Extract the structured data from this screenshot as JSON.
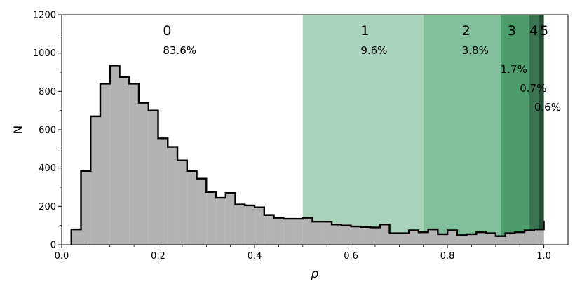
{
  "chart_data": {
    "type": "histogram",
    "xlabel": "p",
    "ylabel": "N",
    "xlim": [
      0.0,
      1.05
    ],
    "ylim": [
      0,
      1200
    ],
    "xticks": [
      "0.0",
      "0.2",
      "0.4",
      "0.6",
      "0.8",
      "1.0"
    ],
    "yticks": [
      "0",
      "200",
      "400",
      "600",
      "800",
      "1000",
      "1200"
    ],
    "grid": false,
    "hist_color": "#b3b3b3",
    "edge_color": "#000000",
    "bin_edges": [
      0.02,
      0.04,
      0.06,
      0.08,
      0.1,
      0.12,
      0.14,
      0.16,
      0.18,
      0.2,
      0.22,
      0.24,
      0.26,
      0.28,
      0.3,
      0.32,
      0.34,
      0.36,
      0.38,
      0.4,
      0.42,
      0.44,
      0.46,
      0.48,
      0.5,
      0.52,
      0.54,
      0.56,
      0.58,
      0.6,
      0.62,
      0.64,
      0.66,
      0.68,
      0.7,
      0.72,
      0.74,
      0.76,
      0.78,
      0.8,
      0.82,
      0.84,
      0.86,
      0.88,
      0.9,
      0.92,
      0.94,
      0.96,
      0.98,
      1.0
    ],
    "counts": [
      80,
      385,
      670,
      840,
      935,
      875,
      840,
      740,
      700,
      555,
      510,
      440,
      385,
      345,
      275,
      245,
      270,
      210,
      205,
      195,
      155,
      140,
      135,
      135,
      140,
      120,
      120,
      105,
      100,
      95,
      92,
      90,
      105,
      60,
      60,
      75,
      65,
      80,
      55,
      75,
      50,
      55,
      65,
      60,
      45,
      60,
      65,
      75,
      80,
      125
    ],
    "regions": [
      {
        "label": "0",
        "percent": "83.6%",
        "x0": 0.0,
        "x1": 0.5,
        "color": "#ffffff"
      },
      {
        "label": "1",
        "percent": "9.6%",
        "x0": 0.5,
        "x1": 0.75,
        "color": "#a9d3bb"
      },
      {
        "label": "2",
        "percent": "3.8%",
        "x0": 0.75,
        "x1": 0.91,
        "color": "#80bf99"
      },
      {
        "label": "3",
        "percent": "1.7%",
        "x0": 0.91,
        "x1": 0.97,
        "color": "#4e9c6c"
      },
      {
        "label": "4",
        "percent": "0.7%",
        "x0": 0.97,
        "x1": 0.99,
        "color": "#3b7450"
      },
      {
        "label": "5",
        "percent": "0.6%",
        "x0": 0.99,
        "x1": 1.0,
        "color": "#234c33"
      }
    ]
  }
}
